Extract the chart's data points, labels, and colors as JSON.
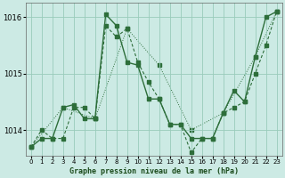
{
  "title": "Graphe pression niveau de la mer (hPa)",
  "bg_color": "#cceae4",
  "plot_bg": "#cceae4",
  "grid_color": "#99ccbb",
  "line_color": "#2d6e3a",
  "xlim": [
    -0.5,
    23.5
  ],
  "ylim": [
    1013.55,
    1016.25
  ],
  "yticks": [
    1014,
    1015,
    1016
  ],
  "xticks": [
    0,
    1,
    2,
    3,
    4,
    5,
    6,
    7,
    8,
    9,
    10,
    11,
    12,
    13,
    14,
    15,
    16,
    17,
    18,
    19,
    20,
    21,
    22,
    23
  ],
  "series_solid": {
    "x": [
      0,
      1,
      2,
      3,
      4,
      5,
      6,
      7,
      8,
      9,
      10,
      11,
      12,
      13,
      14,
      15,
      16,
      17,
      18,
      19,
      20,
      21,
      22,
      23
    ],
    "y": [
      1013.7,
      1013.85,
      1013.85,
      1014.4,
      1014.45,
      1014.2,
      1014.2,
      1016.05,
      1015.85,
      1015.2,
      1015.15,
      1014.55,
      1014.55,
      1014.1,
      1014.1,
      1013.85,
      1013.85,
      1013.85,
      1014.3,
      1014.7,
      1014.5,
      1015.3,
      1016.0,
      1016.1
    ]
  },
  "series_dashed": {
    "x": [
      0,
      1,
      2,
      3,
      4,
      5,
      6,
      7,
      8,
      9,
      10,
      11,
      12,
      13,
      14,
      15,
      16,
      17,
      18,
      19,
      20,
      21,
      22,
      23
    ],
    "y": [
      1013.7,
      1014.0,
      1013.85,
      1013.85,
      1014.4,
      1014.4,
      1014.2,
      1015.85,
      1015.65,
      1015.8,
      1015.2,
      1014.85,
      1014.55,
      1014.1,
      1014.1,
      1013.6,
      1013.85,
      1013.85,
      1014.3,
      1014.4,
      1014.5,
      1015.0,
      1015.5,
      1016.1
    ]
  },
  "series_dotted": {
    "x": [
      0,
      3,
      6,
      9,
      12,
      15,
      18,
      21,
      23
    ],
    "y": [
      1013.7,
      1014.4,
      1014.2,
      1015.8,
      1015.15,
      1014.0,
      1014.3,
      1015.3,
      1016.1
    ]
  }
}
